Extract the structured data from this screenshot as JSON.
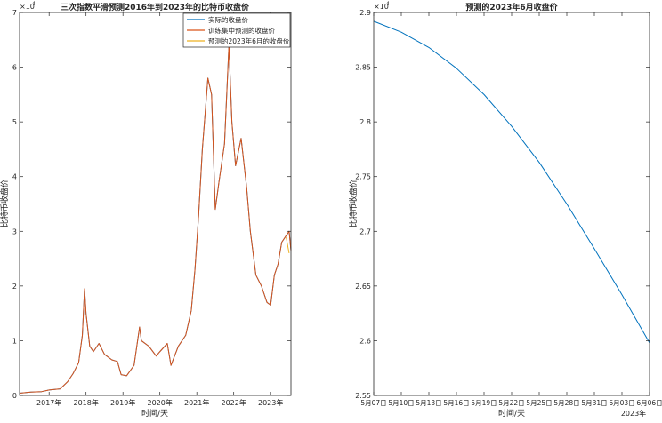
{
  "chart_data": [
    {
      "type": "line",
      "title": "三次指数平滑预测2016年到2023年的比特币收盘价",
      "xlabel": "时间/天",
      "ylabel": "比特币收盘价",
      "y_exponent_label": "×10",
      "y_exponent": "4",
      "ylim": [
        0,
        7
      ],
      "yticks": [
        "0",
        "1",
        "2",
        "3",
        "4",
        "5",
        "6",
        "7"
      ],
      "xlim": [
        2016.2,
        2023.55
      ],
      "xticks": [
        {
          "value": 2017,
          "label": "2017年"
        },
        {
          "value": 2018,
          "label": "2018年"
        },
        {
          "value": 2019,
          "label": "2019年"
        },
        {
          "value": 2020,
          "label": "2020年"
        },
        {
          "value": 2021,
          "label": "2021年"
        },
        {
          "value": 2022,
          "label": "2022年"
        },
        {
          "value": 2023,
          "label": "2023年"
        }
      ],
      "legend_position": "top-right",
      "series": [
        {
          "name": "实际的收盘价",
          "color": "#0072BD",
          "x": [
            2016.2,
            2016.5,
            2016.8,
            2017.0,
            2017.3,
            2017.5,
            2017.65,
            2017.8,
            2017.9,
            2017.96,
            2018.0,
            2018.1,
            2018.2,
            2018.35,
            2018.5,
            2018.7,
            2018.85,
            2018.95,
            2019.1,
            2019.3,
            2019.45,
            2019.5,
            2019.7,
            2019.9,
            2020.0,
            2020.2,
            2020.3,
            2020.5,
            2020.7,
            2020.85,
            2020.95,
            2021.05,
            2021.15,
            2021.3,
            2021.4,
            2021.5,
            2021.6,
            2021.75,
            2021.87,
            2021.95,
            2022.05,
            2022.2,
            2022.35,
            2022.45,
            2022.6,
            2022.75,
            2022.9,
            2023.0,
            2023.1,
            2023.2,
            2023.3,
            2023.4,
            2023.5,
            2023.55
          ],
          "y": [
            0.04,
            0.06,
            0.07,
            0.1,
            0.12,
            0.25,
            0.4,
            0.6,
            1.1,
            1.95,
            1.5,
            0.9,
            0.8,
            0.95,
            0.75,
            0.65,
            0.62,
            0.38,
            0.36,
            0.55,
            1.25,
            1.0,
            0.9,
            0.72,
            0.8,
            0.95,
            0.55,
            0.9,
            1.1,
            1.55,
            2.3,
            3.3,
            4.5,
            5.8,
            5.5,
            3.4,
            3.9,
            4.6,
            6.4,
            5.0,
            4.2,
            4.7,
            3.8,
            3.0,
            2.2,
            2.0,
            1.7,
            1.65,
            2.2,
            2.4,
            2.8,
            2.9,
            3.0,
            2.65
          ]
        },
        {
          "name": "训练集中预测的收盘价",
          "color": "#D95319",
          "x": [
            2016.2,
            2016.5,
            2016.8,
            2017.0,
            2017.3,
            2017.5,
            2017.65,
            2017.8,
            2017.9,
            2017.96,
            2018.0,
            2018.1,
            2018.2,
            2018.35,
            2018.5,
            2018.7,
            2018.85,
            2018.95,
            2019.1,
            2019.3,
            2019.45,
            2019.5,
            2019.7,
            2019.9,
            2020.0,
            2020.2,
            2020.3,
            2020.5,
            2020.7,
            2020.85,
            2020.95,
            2021.05,
            2021.15,
            2021.3,
            2021.4,
            2021.5,
            2021.6,
            2021.75,
            2021.87,
            2021.95,
            2022.05,
            2022.2,
            2022.35,
            2022.45,
            2022.6,
            2022.75,
            2022.9,
            2023.0,
            2023.1,
            2023.2,
            2023.3,
            2023.4,
            2023.5,
            2023.55
          ],
          "y": [
            0.04,
            0.06,
            0.07,
            0.1,
            0.12,
            0.25,
            0.4,
            0.6,
            1.1,
            1.95,
            1.5,
            0.9,
            0.8,
            0.95,
            0.75,
            0.65,
            0.62,
            0.38,
            0.36,
            0.55,
            1.25,
            1.0,
            0.9,
            0.72,
            0.8,
            0.95,
            0.55,
            0.9,
            1.1,
            1.55,
            2.3,
            3.3,
            4.5,
            5.8,
            5.5,
            3.4,
            3.9,
            4.6,
            6.4,
            5.0,
            4.2,
            4.7,
            3.8,
            3.0,
            2.2,
            2.0,
            1.7,
            1.65,
            2.2,
            2.4,
            2.8,
            2.9,
            3.0,
            2.65
          ]
        },
        {
          "name": "预测的2023年6月的收盘价",
          "color": "#EDB120",
          "x": [
            2023.42,
            2023.5
          ],
          "y": [
            2.89,
            2.6
          ]
        }
      ]
    },
    {
      "type": "line",
      "title": "预测的2023年6月收盘价",
      "xlabel": "时间/天",
      "ylabel": "比特币收盘价",
      "y_exponent_label": "×10",
      "y_exponent": "4",
      "ylim": [
        2.55,
        2.9
      ],
      "yticks": [
        "2.55",
        "2.6",
        "2.65",
        "2.7",
        "2.75",
        "2.8",
        "2.85",
        "2.9"
      ],
      "xlim": [
        0,
        30
      ],
      "xticks": [
        {
          "value": 0,
          "label": "5月07日"
        },
        {
          "value": 3,
          "label": "5月10日"
        },
        {
          "value": 6,
          "label": "5月13日"
        },
        {
          "value": 9,
          "label": "5月16日"
        },
        {
          "value": 12,
          "label": "5月19日"
        },
        {
          "value": 15,
          "label": "5月22日"
        },
        {
          "value": 18,
          "label": "5月25日"
        },
        {
          "value": 21,
          "label": "5月28日"
        },
        {
          "value": 24,
          "label": "5月31日"
        },
        {
          "value": 27,
          "label": "6月03日"
        },
        {
          "value": 30,
          "label": "6月06日"
        }
      ],
      "x_secondary_label": "2023年",
      "series": [
        {
          "color": "#0072BD",
          "x": [
            0,
            3,
            6,
            9,
            12,
            15,
            18,
            21,
            24,
            27,
            30
          ],
          "y": [
            2.892,
            2.882,
            2.868,
            2.849,
            2.825,
            2.796,
            2.763,
            2.725,
            2.684,
            2.642,
            2.598
          ]
        }
      ]
    }
  ]
}
